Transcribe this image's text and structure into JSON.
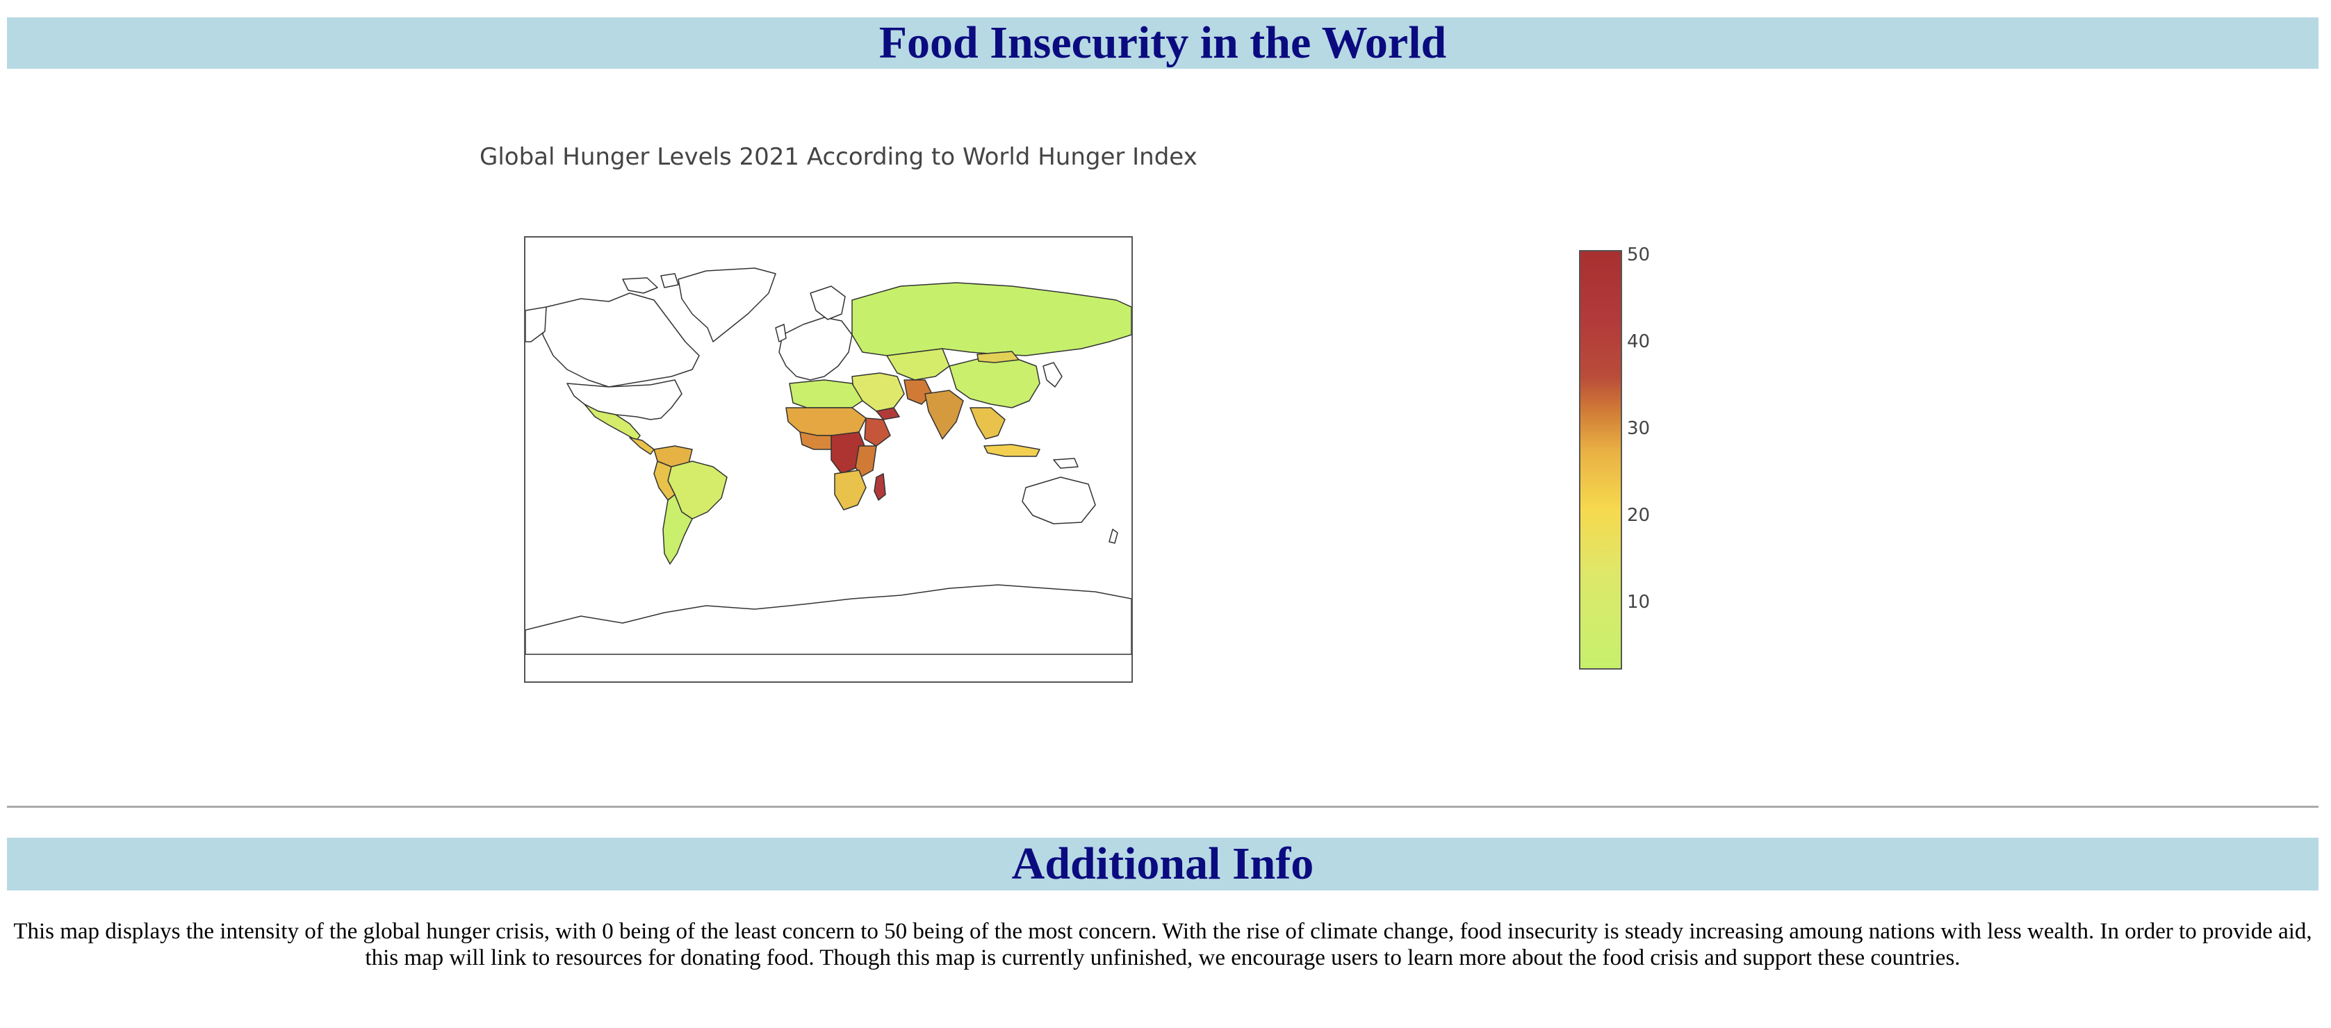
{
  "header": {
    "title": "Food Insecurity in the World"
  },
  "map": {
    "title": "Global Hunger Levels 2021 According to World Hunger Index",
    "colorbar_ticks": [
      "10",
      "20",
      "30",
      "40",
      "50"
    ],
    "colorbar_range": [
      2.5,
      50.8
    ],
    "colorscale": [
      "#c6f06c",
      "#dde86a",
      "#f6d94e",
      "#e9b144",
      "#d07a36",
      "#b94c3a",
      "#a8302f"
    ],
    "no_data_color": "#ffffff"
  },
  "info": {
    "title": "Additional Info",
    "text": "This map displays the intensity of the global hunger crisis, with 0 being of the least concern to 50 being of the most concern. With the rise of climate change, food insecurity is steady increasing amoung nations with less wealth. In order to provide aid, this map will link to resources for donating food. Though this map is currently unfinished, we encourage users to learn more about the food crisis and support these countries."
  }
}
